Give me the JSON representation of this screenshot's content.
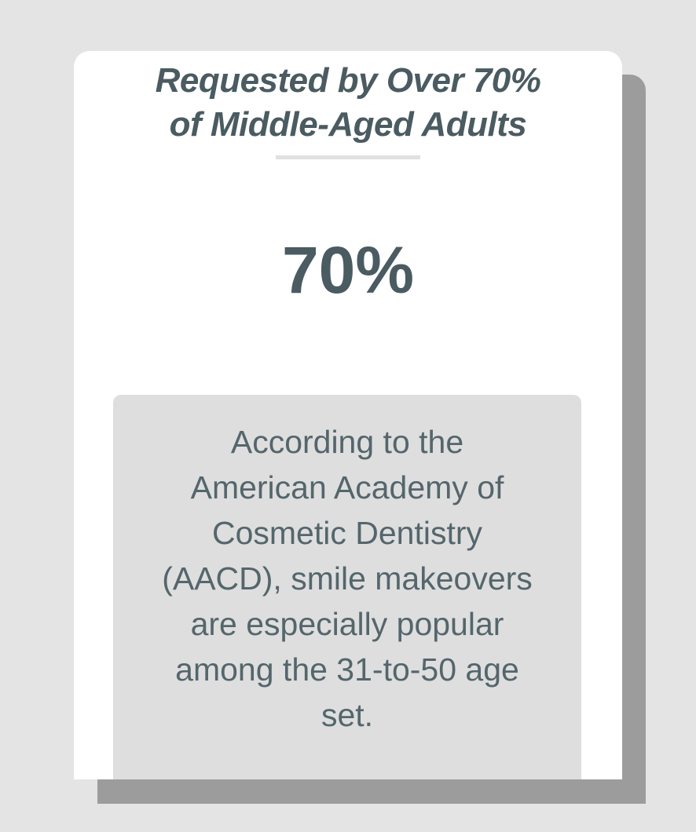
{
  "card": {
    "title": "Requested by Over 70%\nof Middle-Aged Adults",
    "stat_value": "70%",
    "info": {
      "text": "According to the\nAmerican Academy of\nCosmetic Dentistry\n(AACD), smile makeovers\nare especially popular\namong the 31-to-50 age\nset."
    }
  },
  "colors": {
    "background": "#e4e4e4",
    "card": "#ffffff",
    "shadow": "#9c9c9c",
    "divider": "#e1e1e1",
    "info_box": "#dedede",
    "heading_text": "#4a5b61",
    "body_text": "#54666c"
  }
}
